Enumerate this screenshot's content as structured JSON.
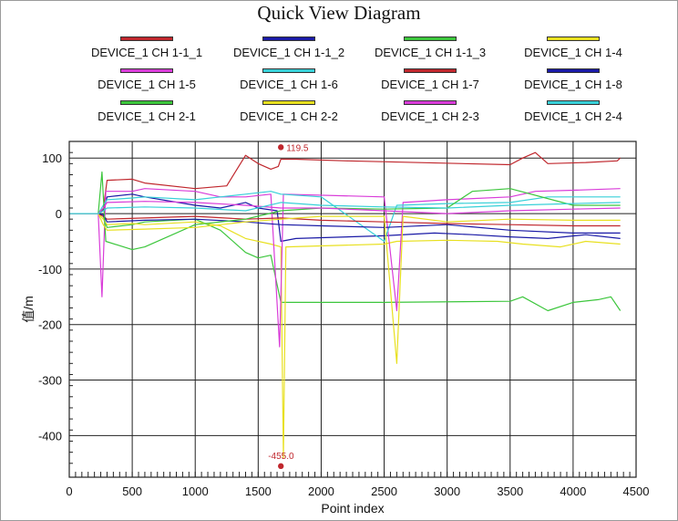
{
  "chart_data": {
    "type": "line",
    "title": "Quick View Diagram",
    "xlabel": "Point index",
    "ylabel": "值/m",
    "xlim": [
      0,
      4500
    ],
    "ylim": [
      -475,
      130
    ],
    "x_ticks": [
      0,
      500,
      1000,
      1500,
      2000,
      2500,
      3000,
      3500,
      4000,
      4500
    ],
    "y_ticks": [
      100,
      0,
      -100,
      -200,
      -300,
      -400
    ],
    "grid": true,
    "legend_position": "top",
    "series": [
      {
        "name": "DEVICE_1 CH 1-1_1",
        "color": "#c0272d",
        "points": [
          [
            0,
            0
          ],
          [
            230,
            0
          ],
          [
            270,
            8
          ],
          [
            300,
            60
          ],
          [
            500,
            62
          ],
          [
            600,
            55
          ],
          [
            1000,
            45
          ],
          [
            1250,
            50
          ],
          [
            1400,
            105
          ],
          [
            1500,
            90
          ],
          [
            1600,
            80
          ],
          [
            1660,
            85
          ],
          [
            1680,
            98
          ],
          [
            1800,
            98
          ],
          [
            2200,
            95
          ],
          [
            3500,
            88
          ],
          [
            3600,
            100
          ],
          [
            3700,
            110
          ],
          [
            3800,
            90
          ],
          [
            4100,
            92
          ],
          [
            4350,
            95
          ],
          [
            4375,
            100
          ]
        ]
      },
      {
        "name": "DEVICE_1 CH 1-1_2",
        "color": "#1a1aa6",
        "points": [
          [
            0,
            0
          ],
          [
            230,
            0
          ],
          [
            270,
            5
          ],
          [
            300,
            30
          ],
          [
            500,
            35
          ],
          [
            600,
            30
          ],
          [
            1000,
            15
          ],
          [
            1200,
            10
          ],
          [
            1400,
            20
          ],
          [
            1500,
            10
          ],
          [
            1650,
            5
          ],
          [
            1680,
            -50
          ],
          [
            1800,
            -45
          ],
          [
            2500,
            -40
          ],
          [
            2900,
            -35
          ],
          [
            3200,
            -38
          ],
          [
            3500,
            -42
          ],
          [
            3800,
            -45
          ],
          [
            4100,
            -38
          ],
          [
            4375,
            -45
          ]
        ]
      },
      {
        "name": "DEVICE_1 CH 1-1_3",
        "color": "#3cc63c",
        "points": [
          [
            0,
            0
          ],
          [
            230,
            0
          ],
          [
            270,
            -5
          ],
          [
            300,
            -25
          ],
          [
            500,
            -20
          ],
          [
            600,
            -15
          ],
          [
            1000,
            -10
          ],
          [
            1200,
            -30
          ],
          [
            1400,
            -70
          ],
          [
            1500,
            -80
          ],
          [
            1600,
            -75
          ],
          [
            1680,
            -160
          ],
          [
            2500,
            -160
          ],
          [
            3500,
            -158
          ],
          [
            3600,
            -150
          ],
          [
            3800,
            -175
          ],
          [
            4000,
            -160
          ],
          [
            4200,
            -155
          ],
          [
            4300,
            -150
          ],
          [
            4375,
            -175
          ]
        ]
      },
      {
        "name": "DEVICE_1 CH 1-4",
        "color": "#e8e020",
        "points": [
          [
            0,
            0
          ],
          [
            230,
            0
          ],
          [
            270,
            -10
          ],
          [
            300,
            -20
          ],
          [
            500,
            -18
          ],
          [
            600,
            -20
          ],
          [
            1000,
            -15
          ],
          [
            1200,
            -22
          ],
          [
            1400,
            -45
          ],
          [
            1600,
            -55
          ],
          [
            1680,
            -60
          ],
          [
            1700,
            -440
          ],
          [
            1720,
            -60
          ],
          [
            2500,
            -55
          ],
          [
            2600,
            -50
          ],
          [
            3000,
            -48
          ],
          [
            3400,
            -50
          ],
          [
            3600,
            -55
          ],
          [
            3900,
            -60
          ],
          [
            4100,
            -50
          ],
          [
            4375,
            -55
          ]
        ]
      },
      {
        "name": "DEVICE_1 CH 1-5",
        "color": "#d93cd9",
        "points": [
          [
            0,
            0
          ],
          [
            230,
            0
          ],
          [
            260,
            -150
          ],
          [
            290,
            40
          ],
          [
            500,
            40
          ],
          [
            600,
            45
          ],
          [
            1000,
            40
          ],
          [
            1200,
            30
          ],
          [
            1400,
            30
          ],
          [
            1600,
            35
          ],
          [
            1670,
            -240
          ],
          [
            1700,
            35
          ],
          [
            2500,
            30
          ],
          [
            2600,
            -175
          ],
          [
            2650,
            20
          ],
          [
            3000,
            25
          ],
          [
            3500,
            30
          ],
          [
            3700,
            40
          ],
          [
            4000,
            42
          ],
          [
            4375,
            45
          ]
        ]
      },
      {
        "name": "DEVICE_1 CH 1-6",
        "color": "#38d0d8",
        "points": [
          [
            0,
            0
          ],
          [
            230,
            0
          ],
          [
            270,
            15
          ],
          [
            300,
            25
          ],
          [
            500,
            28
          ],
          [
            600,
            30
          ],
          [
            1000,
            25
          ],
          [
            1200,
            30
          ],
          [
            1400,
            35
          ],
          [
            1600,
            40
          ],
          [
            1680,
            35
          ],
          [
            2000,
            30
          ],
          [
            2500,
            -50
          ],
          [
            2600,
            15
          ],
          [
            3000,
            18
          ],
          [
            3500,
            20
          ],
          [
            3800,
            30
          ],
          [
            4375,
            30
          ]
        ]
      },
      {
        "name": "DEVICE_1 CH 1-7",
        "color": "#c0272d",
        "points": [
          [
            0,
            0
          ],
          [
            230,
            0
          ],
          [
            270,
            -5
          ],
          [
            300,
            -10
          ],
          [
            600,
            -8
          ],
          [
            1000,
            -5
          ],
          [
            1400,
            -10
          ],
          [
            1680,
            -8
          ],
          [
            2000,
            -12
          ],
          [
            2500,
            -15
          ],
          [
            3000,
            -18
          ],
          [
            3500,
            -20
          ],
          [
            4000,
            -22
          ],
          [
            4375,
            -22
          ]
        ]
      },
      {
        "name": "DEVICE_1 CH 1-8",
        "color": "#1a1aa6",
        "points": [
          [
            0,
            0
          ],
          [
            230,
            0
          ],
          [
            270,
            -2
          ],
          [
            300,
            -15
          ],
          [
            600,
            -12
          ],
          [
            1000,
            -10
          ],
          [
            1400,
            -15
          ],
          [
            1680,
            -20
          ],
          [
            2000,
            -22
          ],
          [
            2500,
            -25
          ],
          [
            3000,
            -20
          ],
          [
            3500,
            -30
          ],
          [
            4000,
            -35
          ],
          [
            4375,
            -35
          ]
        ]
      },
      {
        "name": "DEVICE_1 CH 2-1",
        "color": "#3cc63c",
        "points": [
          [
            0,
            0
          ],
          [
            230,
            0
          ],
          [
            260,
            75
          ],
          [
            290,
            -50
          ],
          [
            500,
            -65
          ],
          [
            600,
            -60
          ],
          [
            1000,
            -20
          ],
          [
            1400,
            -10
          ],
          [
            1680,
            5
          ],
          [
            2000,
            10
          ],
          [
            2500,
            8
          ],
          [
            3000,
            10
          ],
          [
            3200,
            40
          ],
          [
            3500,
            45
          ],
          [
            4000,
            15
          ],
          [
            4375,
            15
          ]
        ]
      },
      {
        "name": "DEVICE_1 CH 2-2",
        "color": "#e8e020",
        "points": [
          [
            0,
            0
          ],
          [
            230,
            0
          ],
          [
            270,
            -20
          ],
          [
            300,
            -30
          ],
          [
            600,
            -28
          ],
          [
            1000,
            -25
          ],
          [
            1400,
            -15
          ],
          [
            1680,
            -10
          ],
          [
            2000,
            -5
          ],
          [
            2500,
            -5
          ],
          [
            2600,
            -270
          ],
          [
            2650,
            -5
          ],
          [
            3000,
            -15
          ],
          [
            3500,
            -10
          ],
          [
            4000,
            -12
          ],
          [
            4375,
            -12
          ]
        ]
      },
      {
        "name": "DEVICE_1 CH 2-3",
        "color": "#d93cd9",
        "points": [
          [
            0,
            0
          ],
          [
            230,
            0
          ],
          [
            270,
            10
          ],
          [
            300,
            20
          ],
          [
            600,
            22
          ],
          [
            1000,
            20
          ],
          [
            1400,
            15
          ],
          [
            1680,
            10
          ],
          [
            2000,
            10
          ],
          [
            2500,
            5
          ],
          [
            3000,
            0
          ],
          [
            3500,
            5
          ],
          [
            4000,
            8
          ],
          [
            4375,
            10
          ]
        ]
      },
      {
        "name": "DEVICE_1 CH 2-4",
        "color": "#38d0d8",
        "points": [
          [
            0,
            0
          ],
          [
            230,
            0
          ],
          [
            270,
            5
          ],
          [
            300,
            10
          ],
          [
            600,
            12
          ],
          [
            1000,
            10
          ],
          [
            1400,
            5
          ],
          [
            1680,
            20
          ],
          [
            2000,
            15
          ],
          [
            2500,
            12
          ],
          [
            3000,
            10
          ],
          [
            3500,
            15
          ],
          [
            4000,
            18
          ],
          [
            4375,
            20
          ]
        ]
      }
    ],
    "annotations": [
      {
        "x": 1680,
        "y": 119.5,
        "label": "119.5"
      },
      {
        "x": 1680,
        "y": -455.0,
        "label": "-455.0"
      }
    ]
  }
}
